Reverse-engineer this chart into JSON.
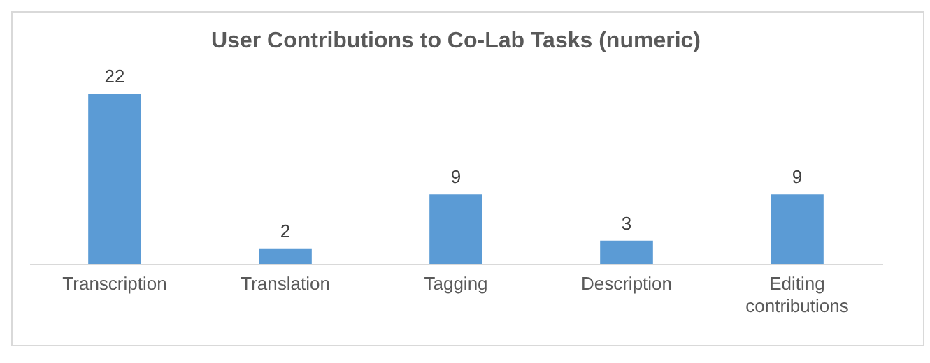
{
  "chart_data": {
    "type": "bar",
    "title": "User Contributions to Co-Lab Tasks (numeric)",
    "categories": [
      "Transcription",
      "Translation",
      "Tagging",
      "Description",
      "Editing contributions"
    ],
    "values": [
      22,
      2,
      9,
      3,
      9
    ],
    "color": "#5b9bd5",
    "data_labels": true,
    "grid": false
  }
}
